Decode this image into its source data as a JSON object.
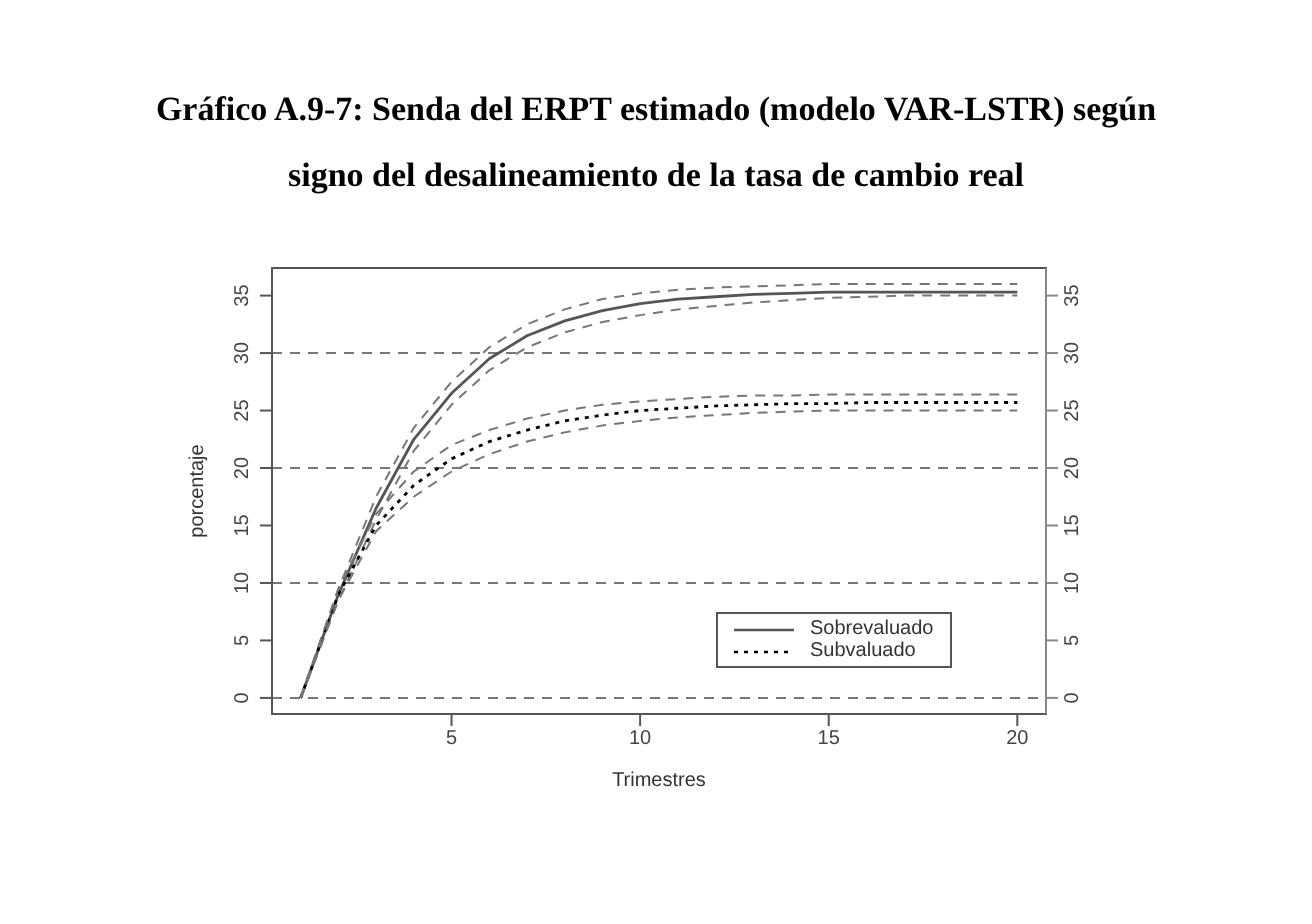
{
  "chart_data": {
    "type": "line",
    "title": "Gráfico A.9-7: Senda del ERPT estimado (modelo VAR-LSTR) según\nsigno del desalineamiento de la tasa de cambio real",
    "xlabel": "Trimestres",
    "ylabel": "porcentaje",
    "x": [
      1,
      2,
      3,
      4,
      5,
      6,
      7,
      8,
      9,
      10,
      11,
      12,
      13,
      14,
      15,
      16,
      17,
      18,
      19,
      20
    ],
    "series": [
      {
        "name": "Sobrevaluado",
        "color": "#555555",
        "line_style": "solid",
        "values": [
          0,
          9,
          16.5,
          22.5,
          26.5,
          29.5,
          31.5,
          32.8,
          33.7,
          34.3,
          34.7,
          34.9,
          35.1,
          35.2,
          35.3,
          35.3,
          35.3,
          35.3,
          35.3,
          35.3
        ]
      },
      {
        "color": "#777777",
        "line_style": "dashed",
        "values": [
          0,
          9.5,
          17.5,
          23.5,
          27.5,
          30.5,
          32.5,
          33.8,
          34.7,
          35.2,
          35.5,
          35.7,
          35.8,
          35.9,
          36,
          36,
          36,
          36,
          36,
          36
        ]
      },
      {
        "color": "#777777",
        "line_style": "dashed",
        "values": [
          0,
          8.5,
          15.5,
          21.5,
          25.5,
          28.5,
          30.5,
          31.8,
          32.7,
          33.3,
          33.8,
          34.1,
          34.4,
          34.6,
          34.8,
          34.9,
          35,
          35,
          35,
          35
        ]
      },
      {
        "name": "Subvaluado",
        "color": "#000000",
        "line_style": "dotted",
        "values": [
          0,
          9,
          15,
          18.5,
          20.8,
          22.3,
          23.3,
          24.1,
          24.6,
          25,
          25.2,
          25.4,
          25.5,
          25.6,
          25.6,
          25.7,
          25.7,
          25.7,
          25.7,
          25.7
        ]
      },
      {
        "color": "#777777",
        "line_style": "dashed",
        "values": [
          0,
          9.5,
          16,
          19.7,
          22,
          23.3,
          24.3,
          25,
          25.5,
          25.8,
          26,
          26.2,
          26.3,
          26.3,
          26.4,
          26.4,
          26.4,
          26.4,
          26.4,
          26.4
        ]
      },
      {
        "color": "#777777",
        "line_style": "dashed",
        "values": [
          0,
          8.5,
          14.5,
          17.5,
          19.7,
          21.2,
          22.3,
          23.1,
          23.7,
          24.1,
          24.4,
          24.6,
          24.8,
          24.9,
          25,
          25,
          25,
          25,
          25,
          25
        ]
      }
    ],
    "xlim": [
      0.24,
      20.76
    ],
    "xticks": [
      5,
      10,
      15,
      20
    ],
    "ylim": [
      -1.4,
      37.4
    ],
    "yticks": [
      0,
      5,
      10,
      15,
      20,
      25,
      30,
      35
    ],
    "y2lim": [
      -1.4,
      37.4
    ],
    "y2ticks": [
      0,
      5,
      10,
      15,
      20,
      25,
      30,
      35
    ],
    "ref_lines": [
      {
        "axis": "y",
        "value": 0,
        "color": "#777777",
        "line_style": "dashed"
      },
      {
        "axis": "y",
        "value": 10,
        "color": "#777777",
        "line_style": "dashed"
      },
      {
        "axis": "y",
        "value": 20,
        "color": "#777777",
        "line_style": "dashed"
      },
      {
        "axis": "y",
        "value": 30,
        "color": "#777777",
        "line_style": "dashed"
      }
    ],
    "legend": "bottom right"
  }
}
